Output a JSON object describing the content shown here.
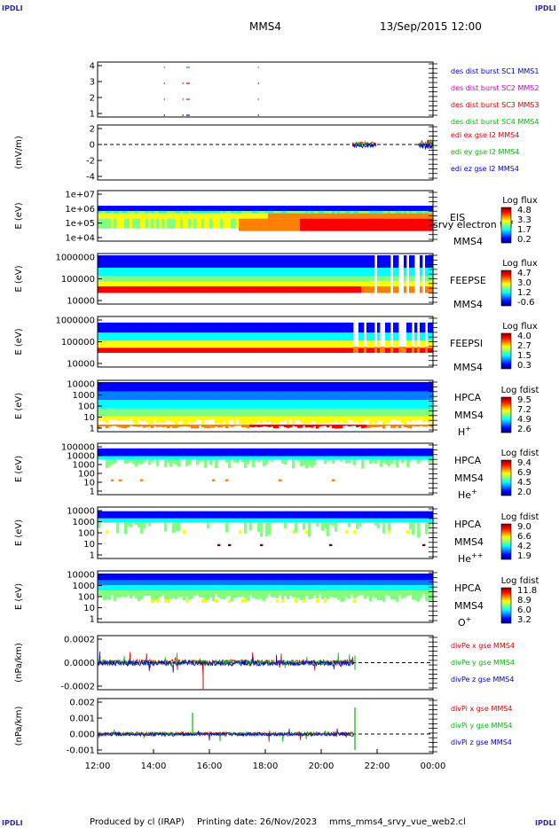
{
  "header": {
    "corner_tl": "IPDLI",
    "corner_tr": "IPDLI",
    "corner_bl": "IPDLI",
    "corner_br": "IPDLI",
    "spacecraft": "MMS4",
    "date_time": "13/Sep/2015 12:00"
  },
  "footer": {
    "produced_by": "Produced by cl (IRAP)",
    "printing_date": "Printing date: 26/Nov/2023",
    "file": "mms_mms4_srvy_vue_web2.cl"
  },
  "chart_data": {
    "type": "multi-panel time series",
    "x_axis": {
      "range": [
        "12:00",
        "00:00"
      ],
      "tick_labels": [
        "12:00",
        "14:00",
        "16:00",
        "18:00",
        "20:00",
        "22:00",
        "00:00"
      ]
    },
    "panels": [
      {
        "id": "burst",
        "type": "line",
        "ylabel": "",
        "yticks": [
          "4",
          "3",
          "2",
          "1"
        ],
        "series": [
          {
            "name": "des dist burst SC1 MMS1",
            "color": "#0000cc",
            "level": 1,
            "intervals": [
              [
                "14:22",
                "14:23"
              ],
              [
                "15:02",
                "15:04"
              ],
              [
                "15:10",
                "15:18"
              ],
              [
                "17:44",
                "17:45"
              ]
            ]
          },
          {
            "name": "des dist burst SC2 MMS2",
            "color": "#cc00cc",
            "level": 2,
            "intervals": [
              [
                "14:22",
                "14:23"
              ],
              [
                "15:02",
                "15:04"
              ],
              [
                "15:10",
                "15:18"
              ],
              [
                "17:44",
                "17:45"
              ]
            ]
          },
          {
            "name": "des dist burst SC3 MMS3",
            "color": "#dd0000",
            "level": 3,
            "intervals": [
              [
                "14:22",
                "14:23"
              ],
              [
                "15:02",
                "15:04"
              ],
              [
                "15:10",
                "15:18"
              ],
              [
                "17:44",
                "17:45"
              ]
            ]
          },
          {
            "name": "des dist burst SC4 MMS4",
            "color": "#00bb00",
            "level": 4,
            "intervals": [
              [
                "14:22",
                "14:23"
              ],
              [
                "15:10",
                "15:18"
              ],
              [
                "17:44",
                "17:45"
              ]
            ]
          }
        ]
      },
      {
        "id": "edi",
        "type": "line",
        "ylabel": "(mV/m)",
        "yticks": [
          "2",
          "0",
          "-2",
          "-4"
        ],
        "ylim": [
          -5,
          3
        ],
        "series": [
          {
            "name": "edi ex gse l2 MMS4",
            "color": "#dd0000"
          },
          {
            "name": "edi ey gse l2 MMS4",
            "color": "#00bb00"
          },
          {
            "name": "edi ez gse l2 MMS4",
            "color": "#0000cc"
          }
        ],
        "data_segments": [
          [
            "21:07",
            "21:58"
          ],
          [
            "23:28",
            "00:00"
          ]
        ]
      },
      {
        "id": "eis",
        "type": "heatmap",
        "ylabel": "E (eV)",
        "yticks": [
          "1e+07",
          "1e+06",
          "1e+05",
          "1e+04"
        ],
        "instrument": "EIS",
        "product_label": "srvy electron tof",
        "sc": "MMS4",
        "colorbar": {
          "title": "Log flux",
          "labels": [
            "4.8",
            "3.3",
            "1.7",
            "0.2"
          ]
        }
      },
      {
        "id": "feepse",
        "type": "heatmap",
        "ylabel": "E (eV)",
        "yticks": [
          "1000000",
          "100000",
          "10000"
        ],
        "instrument": "FEEPSE",
        "sc": "MMS4",
        "colorbar": {
          "title": "Log flux",
          "labels": [
            "4.7",
            "3.0",
            "1.2",
            "-0.6"
          ]
        }
      },
      {
        "id": "feepsi",
        "type": "heatmap",
        "ylabel": "E (eV)",
        "yticks": [
          "1000000",
          "100000",
          "10000"
        ],
        "instrument": "FEEPSI",
        "sc": "MMS4",
        "colorbar": {
          "title": "Log flux",
          "labels": [
            "4.0",
            "2.7",
            "1.5",
            "0.3"
          ]
        }
      },
      {
        "id": "hpca_h",
        "type": "heatmap",
        "ylabel": "E (eV)",
        "yticks": [
          "10000",
          "1000",
          "100",
          "10",
          "1"
        ],
        "instrument": "HPCA",
        "sc": "MMS4",
        "species": "H",
        "charge": "+",
        "colorbar": {
          "title": "Log fdist",
          "labels": [
            "9.5",
            "7.2",
            "4.9",
            "2.6"
          ]
        }
      },
      {
        "id": "hpca_he1",
        "type": "heatmap",
        "ylabel": "E (eV)",
        "yticks": [
          "100000",
          "10000",
          "1000",
          "100",
          "10",
          "1"
        ],
        "instrument": "HPCA",
        "sc": "MMS4",
        "species": "He",
        "charge": "+",
        "colorbar": {
          "title": "Log fdist",
          "labels": [
            "9.4",
            "6.9",
            "4.5",
            "2.0"
          ]
        }
      },
      {
        "id": "hpca_he2",
        "type": "heatmap",
        "ylabel": "E (eV)",
        "yticks": [
          "10000",
          "1000",
          "100",
          "10",
          "1"
        ],
        "instrument": "HPCA",
        "sc": "MMS4",
        "species": "He",
        "charge": "++",
        "colorbar": {
          "title": "Log fdist",
          "labels": [
            "9.0",
            "6.6",
            "4.2",
            "1.9"
          ]
        }
      },
      {
        "id": "hpca_o",
        "type": "heatmap",
        "ylabel": "E (eV)",
        "yticks": [
          "10000",
          "1000",
          "100",
          "10",
          "1"
        ],
        "instrument": "HPCA",
        "sc": "MMS4",
        "species": "O",
        "charge": "+",
        "colorbar": {
          "title": "Log fdist",
          "labels": [
            "11.8",
            "8.9",
            "6.0",
            "3.2"
          ]
        }
      },
      {
        "id": "divpe",
        "type": "line",
        "ylabel": "(nPa/km)",
        "yticks": [
          "0.0002",
          "0.0000",
          "-0.0002"
        ],
        "ylim": [
          -0.00035,
          0.00025
        ],
        "series": [
          {
            "name": "divPe x gse MMS4",
            "color": "#dd0000"
          },
          {
            "name": "divPe y gse MMS4",
            "color": "#00bb00"
          },
          {
            "name": "divPe z gse MMS4",
            "color": "#0000cc"
          }
        ],
        "data_end": "21:10"
      },
      {
        "id": "divpi",
        "type": "line",
        "ylabel": "(nPa/km)",
        "yticks": [
          "0.002",
          "0.001",
          "0.000",
          "-0.001"
        ],
        "ylim": [
          -0.0016,
          0.0023
        ],
        "series": [
          {
            "name": "divPi x gse MMS4",
            "color": "#dd0000"
          },
          {
            "name": "divPi y gse MMS4",
            "color": "#00bb00"
          },
          {
            "name": "divPi z gse MMS4",
            "color": "#0000cc"
          }
        ],
        "data_end": "21:10"
      }
    ],
    "colors": {
      "colormap": [
        "#00007f",
        "#0000ff",
        "#0080ff",
        "#00ffff",
        "#80ff80",
        "#ffff00",
        "#ff8000",
        "#ff0000",
        "#7f0000"
      ],
      "zero_line": "#000000"
    }
  }
}
